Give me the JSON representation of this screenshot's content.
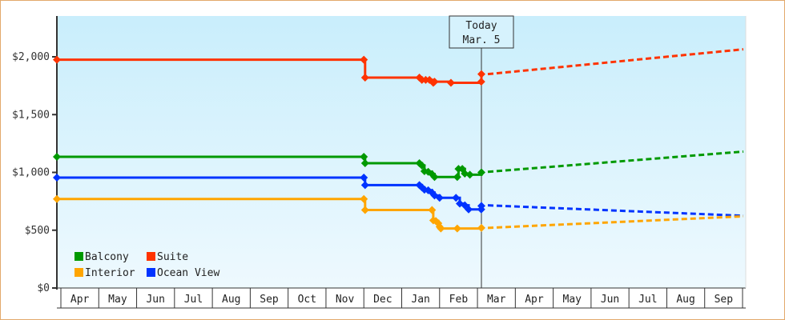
{
  "chart_data": {
    "type": "line",
    "title": "",
    "xlabel": "",
    "ylabel": "",
    "ylim": [
      0,
      2350
    ],
    "y_ticks": [
      {
        "value": 0,
        "label": "$0"
      },
      {
        "value": 500,
        "label": "$500"
      },
      {
        "value": 1000,
        "label": "$1,000"
      },
      {
        "value": 1500,
        "label": "$1,500"
      },
      {
        "value": 2000,
        "label": "$2,000"
      }
    ],
    "x_months": [
      "Apr",
      "May",
      "Jun",
      "Jul",
      "Aug",
      "Sep",
      "Oct",
      "Nov",
      "Dec",
      "Jan",
      "Feb",
      "Mar",
      "Apr",
      "May",
      "Jun",
      "Jul",
      "Aug",
      "Sep"
    ],
    "grid": false,
    "legend_position": "bottom-left inside plot",
    "today_marker": {
      "line1": "Today",
      "line2": "Mar. 5"
    },
    "series": [
      {
        "name": "Suite",
        "color": "#ff3300",
        "history": [
          {
            "date": "Apr 1",
            "value": 1975
          },
          {
            "date": "Dec 1",
            "value": 1975
          },
          {
            "date": "Dec 2",
            "value": 1820
          },
          {
            "date": "Jan 15",
            "value": 1820
          },
          {
            "date": "Jan 17",
            "value": 1800
          },
          {
            "date": "Jan 20",
            "value": 1800
          },
          {
            "date": "Jan 23",
            "value": 1800
          },
          {
            "date": "Jan 26",
            "value": 1775
          },
          {
            "date": "Jan 27",
            "value": 1785
          },
          {
            "date": "Feb 10",
            "value": 1775
          },
          {
            "date": "Mar 4",
            "value": 1785
          },
          {
            "date": "Mar 5",
            "value": 1850
          }
        ],
        "forecast": [
          {
            "date": "Mar 5",
            "value": 1850
          },
          {
            "date": "Sep 30",
            "value": 2065
          }
        ]
      },
      {
        "name": "Balcony",
        "color": "#009900",
        "history": [
          {
            "date": "Apr 1",
            "value": 1135
          },
          {
            "date": "Dec 1",
            "value": 1135
          },
          {
            "date": "Dec 2",
            "value": 1080
          },
          {
            "date": "Jan 15",
            "value": 1080
          },
          {
            "date": "Jan 17",
            "value": 1060
          },
          {
            "date": "Jan 19",
            "value": 1010
          },
          {
            "date": "Jan 22",
            "value": 1005
          },
          {
            "date": "Jan 25",
            "value": 985
          },
          {
            "date": "Jan 27",
            "value": 960
          },
          {
            "date": "Feb 15",
            "value": 960
          },
          {
            "date": "Feb 16",
            "value": 1030
          },
          {
            "date": "Feb 19",
            "value": 1030
          },
          {
            "date": "Feb 21",
            "value": 990
          },
          {
            "date": "Feb 25",
            "value": 980
          },
          {
            "date": "Mar 5",
            "value": 1000
          }
        ],
        "forecast": [
          {
            "date": "Mar 5",
            "value": 1005
          },
          {
            "date": "Sep 30",
            "value": 1180
          }
        ]
      },
      {
        "name": "Ocean View",
        "color": "#0033ff",
        "history": [
          {
            "date": "Apr 1",
            "value": 955
          },
          {
            "date": "Dec 1",
            "value": 955
          },
          {
            "date": "Dec 2",
            "value": 890
          },
          {
            "date": "Jan 15",
            "value": 890
          },
          {
            "date": "Jan 17",
            "value": 870
          },
          {
            "date": "Jan 19",
            "value": 850
          },
          {
            "date": "Jan 22",
            "value": 845
          },
          {
            "date": "Jan 25",
            "value": 825
          },
          {
            "date": "Jan 27",
            "value": 800
          },
          {
            "date": "Feb 1",
            "value": 780
          },
          {
            "date": "Feb 14",
            "value": 780
          },
          {
            "date": "Feb 17",
            "value": 730
          },
          {
            "date": "Feb 21",
            "value": 715
          },
          {
            "date": "Feb 24",
            "value": 680
          },
          {
            "date": "Mar 4",
            "value": 680
          },
          {
            "date": "Mar 5",
            "value": 710
          }
        ],
        "forecast": [
          {
            "date": "Mar 5",
            "value": 715
          },
          {
            "date": "Sep 30",
            "value": 625
          }
        ]
      },
      {
        "name": "Interior",
        "color": "#ffa500",
        "history": [
          {
            "date": "Apr 1",
            "value": 770
          },
          {
            "date": "Dec 1",
            "value": 770
          },
          {
            "date": "Dec 2",
            "value": 675
          },
          {
            "date": "Jan 25",
            "value": 675
          },
          {
            "date": "Jan 26",
            "value": 585
          },
          {
            "date": "Jan 28",
            "value": 580
          },
          {
            "date": "Jan 30",
            "value": 560
          },
          {
            "date": "Feb 1",
            "value": 530
          },
          {
            "date": "Feb 2",
            "value": 515
          },
          {
            "date": "Feb 15",
            "value": 515
          },
          {
            "date": "Mar 5",
            "value": 520
          }
        ],
        "forecast": [
          {
            "date": "Mar 5",
            "value": 520
          },
          {
            "date": "Sep 30",
            "value": 620
          }
        ]
      }
    ]
  },
  "legend": [
    {
      "name": "Balcony",
      "color": "#009900"
    },
    {
      "name": "Suite",
      "color": "#ff3300"
    },
    {
      "name": "Interior",
      "color": "#ffa500"
    },
    {
      "name": "Ocean View",
      "color": "#0033ff"
    }
  ],
  "colors": {
    "frame_border": "#e3a96b",
    "plot_bg_top": "#c9eefc",
    "plot_bg_bottom": "#eef9fe",
    "axis": "#333333"
  }
}
